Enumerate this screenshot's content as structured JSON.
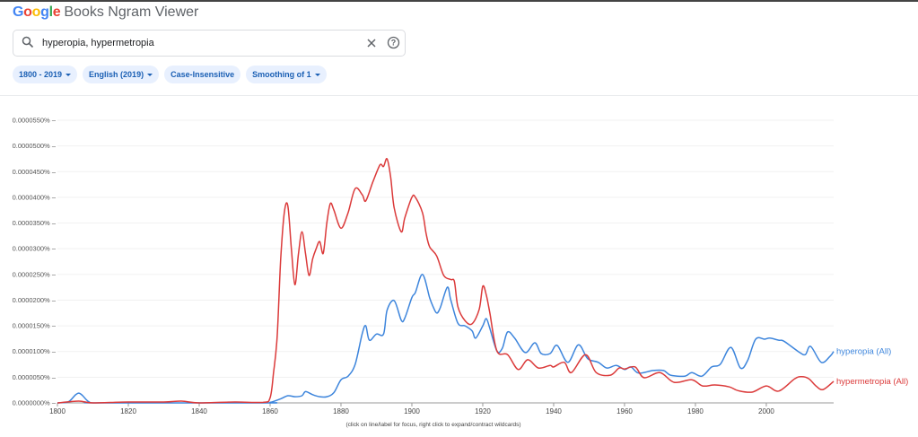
{
  "header": {
    "brand_logo": "Google",
    "title": "Books Ngram Viewer"
  },
  "search": {
    "query": "hyperopia, hypermetropia",
    "icons": [
      "search-icon",
      "clear-icon",
      "help-icon"
    ]
  },
  "filters": [
    {
      "label": "1800 - 2019",
      "dropdown": true
    },
    {
      "label": "English (2019)",
      "dropdown": true
    },
    {
      "label": "Case-Insensitive",
      "dropdown": false
    },
    {
      "label": "Smoothing of 1",
      "dropdown": true
    }
  ],
  "footnote": "(click on line/label for focus, right click to expand/contract wildcards)",
  "chart_data": {
    "type": "line",
    "title": "",
    "xlabel": "",
    "ylabel": "",
    "xlim": [
      1800,
      2019
    ],
    "ylim": [
      0,
      5.5e-05
    ],
    "x_ticks": [
      1800,
      1820,
      1840,
      1860,
      1880,
      1900,
      1920,
      1940,
      1960,
      1980,
      2000
    ],
    "x_tick_labels": [
      "1800",
      "1820",
      "1840",
      "1860",
      "1880",
      "1900",
      "1920",
      "1940",
      "1960",
      "1980",
      "2000"
    ],
    "y_ticks": [
      0,
      5e-06,
      1e-05,
      1.5e-05,
      2e-05,
      2.5e-05,
      3e-05,
      3.5e-05,
      4e-05,
      4.5e-05,
      5e-05,
      5.5e-05
    ],
    "y_tick_labels": [
      "0.0000000%",
      "0.0000050%",
      "0.0000100%",
      "0.0000150%",
      "0.0000200%",
      "0.0000250%",
      "0.0000300%",
      "0.0000350%",
      "0.0000400%",
      "0.0000450%",
      "0.0000500%",
      "0.0000550%"
    ],
    "grid": true,
    "legend": "right-end labels",
    "series": [
      {
        "name": "hyperopia (All)",
        "color": "#3d85dc",
        "points": [
          [
            1800,
            0
          ],
          [
            1803,
            1.7e-07
          ],
          [
            1805,
            1.5e-06
          ],
          [
            1806,
            1.9e-06
          ],
          [
            1807,
            1.5e-06
          ],
          [
            1809,
            1.7e-07
          ],
          [
            1812,
            0
          ],
          [
            1858,
            0
          ],
          [
            1860,
            1e-07
          ],
          [
            1863,
            8e-07
          ],
          [
            1865,
            1.4e-06
          ],
          [
            1867,
            1.2e-06
          ],
          [
            1869,
            1.4e-06
          ],
          [
            1870,
            2.2e-06
          ],
          [
            1872,
            1.6e-06
          ],
          [
            1874,
            1.2e-06
          ],
          [
            1876,
            1.2e-06
          ],
          [
            1878,
            2e-06
          ],
          [
            1880,
            4.5e-06
          ],
          [
            1882,
            5.2e-06
          ],
          [
            1884,
            7.5e-06
          ],
          [
            1886,
            1.35e-05
          ],
          [
            1887,
            1.5e-05
          ],
          [
            1888,
            1.22e-05
          ],
          [
            1890,
            1.34e-05
          ],
          [
            1892,
            1.34e-05
          ],
          [
            1893,
            1.8e-05
          ],
          [
            1895,
            1.99e-05
          ],
          [
            1897,
            1.61e-05
          ],
          [
            1898,
            1.65e-05
          ],
          [
            1900,
            2.05e-05
          ],
          [
            1901,
            2.15e-05
          ],
          [
            1903,
            2.5e-05
          ],
          [
            1905,
            2.05e-05
          ],
          [
            1906,
            1.87e-05
          ],
          [
            1907,
            1.75e-05
          ],
          [
            1908,
            1.85e-05
          ],
          [
            1910,
            2.25e-05
          ],
          [
            1911,
            2e-05
          ],
          [
            1913,
            1.55e-05
          ],
          [
            1915,
            1.5e-05
          ],
          [
            1917,
            1.4e-05
          ],
          [
            1918,
            1.26e-05
          ],
          [
            1920,
            1.5e-05
          ],
          [
            1921,
            1.64e-05
          ],
          [
            1922,
            1.45e-05
          ],
          [
            1924,
            1.01e-05
          ],
          [
            1925.5,
            1.06e-05
          ],
          [
            1927,
            1.38e-05
          ],
          [
            1929,
            1.26e-05
          ],
          [
            1932,
            9.8e-06
          ],
          [
            1934.7,
            1.17e-05
          ],
          [
            1936.5,
            9.6e-06
          ],
          [
            1939,
            9.6e-06
          ],
          [
            1941,
            1.12e-05
          ],
          [
            1944,
            7.9e-06
          ],
          [
            1947,
            1.13e-05
          ],
          [
            1949.6,
            8.6e-06
          ],
          [
            1952.6,
            7.9e-06
          ],
          [
            1955,
            6.8e-06
          ],
          [
            1957.7,
            7.3e-06
          ],
          [
            1960,
            6.5e-06
          ],
          [
            1961.8,
            7e-06
          ],
          [
            1964,
            5.8e-06
          ],
          [
            1968,
            6.3e-06
          ],
          [
            1971,
            6.3e-06
          ],
          [
            1973,
            5.4e-06
          ],
          [
            1977,
            5.2e-06
          ],
          [
            1979,
            5.9e-06
          ],
          [
            1981.8,
            5.2e-06
          ],
          [
            1984.6,
            7e-06
          ],
          [
            1987,
            7.5e-06
          ],
          [
            1990,
            1.08e-05
          ],
          [
            1992.7,
            6.8e-06
          ],
          [
            1994.7,
            8.2e-06
          ],
          [
            1997,
            1.24e-05
          ],
          [
            1999.5,
            1.24e-05
          ],
          [
            2001,
            1.26e-05
          ],
          [
            2003.5,
            1.22e-05
          ],
          [
            2005,
            1.2e-05
          ],
          [
            2009,
            1e-05
          ],
          [
            2011,
            9.4e-06
          ],
          [
            2012.5,
            1.1e-05
          ],
          [
            2015.5,
            7.9e-06
          ],
          [
            2018,
            9.1e-06
          ],
          [
            2019,
            1e-05
          ]
        ]
      },
      {
        "name": "hypermetropia (All)",
        "color": "#db3a3a",
        "points": [
          [
            1800,
            0
          ],
          [
            1806,
            3.5e-07
          ],
          [
            1810,
            0
          ],
          [
            1820,
            1.7e-07
          ],
          [
            1830,
            1.7e-07
          ],
          [
            1835,
            3.5e-07
          ],
          [
            1840,
            0
          ],
          [
            1850,
            1.7e-07
          ],
          [
            1858,
            1e-07
          ],
          [
            1860,
            1e-06
          ],
          [
            1861,
            6e-06
          ],
          [
            1862,
            1.3e-05
          ],
          [
            1863,
            2.8e-05
          ],
          [
            1864,
            3.7e-05
          ],
          [
            1865,
            3.84e-05
          ],
          [
            1866,
            3e-05
          ],
          [
            1867,
            2.3e-05
          ],
          [
            1868,
            2.9e-05
          ],
          [
            1869,
            3.33e-05
          ],
          [
            1870,
            2.9e-05
          ],
          [
            1871,
            2.48e-05
          ],
          [
            1872,
            2.8e-05
          ],
          [
            1873,
            3e-05
          ],
          [
            1874,
            3.14e-05
          ],
          [
            1875,
            2.91e-05
          ],
          [
            1876,
            3.5e-05
          ],
          [
            1877,
            3.88e-05
          ],
          [
            1878,
            3.75e-05
          ],
          [
            1880,
            3.4e-05
          ],
          [
            1882,
            3.7e-05
          ],
          [
            1884,
            4.17e-05
          ],
          [
            1886,
            4.05e-05
          ],
          [
            1887,
            3.93e-05
          ],
          [
            1889,
            4.3e-05
          ],
          [
            1891,
            4.63e-05
          ],
          [
            1892,
            4.6e-05
          ],
          [
            1893,
            4.75e-05
          ],
          [
            1894,
            4.4e-05
          ],
          [
            1895,
            3.8e-05
          ],
          [
            1897,
            3.33e-05
          ],
          [
            1898,
            3.6e-05
          ],
          [
            1900,
            4e-05
          ],
          [
            1901,
            4e-05
          ],
          [
            1903,
            3.7e-05
          ],
          [
            1904,
            3.3e-05
          ],
          [
            1905,
            3.04e-05
          ],
          [
            1907,
            2.86e-05
          ],
          [
            1909,
            2.48e-05
          ],
          [
            1911,
            2.4e-05
          ],
          [
            1912,
            2.36e-05
          ],
          [
            1913,
            1.87e-05
          ],
          [
            1915,
            1.6e-05
          ],
          [
            1917,
            1.54e-05
          ],
          [
            1919,
            1.82e-05
          ],
          [
            1920,
            2.27e-05
          ],
          [
            1921,
            2.1e-05
          ],
          [
            1922,
            1.75e-05
          ],
          [
            1924,
            1.01e-05
          ],
          [
            1927,
            9.4e-06
          ],
          [
            1930,
            6.5e-06
          ],
          [
            1932.7,
            8.4e-06
          ],
          [
            1935.7,
            6.8e-06
          ],
          [
            1939,
            7.3e-06
          ],
          [
            1940,
            7e-06
          ],
          [
            1943,
            7.9e-06
          ],
          [
            1945,
            5.9e-06
          ],
          [
            1949,
            9.4e-06
          ],
          [
            1952,
            5.9e-06
          ],
          [
            1956,
            5.4e-06
          ],
          [
            1958.5,
            6.8e-06
          ],
          [
            1960,
            6.6e-06
          ],
          [
            1963,
            7e-06
          ],
          [
            1965.5,
            4.9e-06
          ],
          [
            1970,
            5.9e-06
          ],
          [
            1974,
            4e-06
          ],
          [
            1979,
            4.5e-06
          ],
          [
            1982,
            3.3e-06
          ],
          [
            1985.5,
            3.5e-06
          ],
          [
            1989.6,
            3.1e-06
          ],
          [
            1992,
            2.4e-06
          ],
          [
            1996,
            2.1e-06
          ],
          [
            2000,
            3.3e-06
          ],
          [
            2003.5,
            2.3e-06
          ],
          [
            2008,
            4.7e-06
          ],
          [
            2010,
            5.1e-06
          ],
          [
            2012,
            4.7e-06
          ],
          [
            2014,
            3.3e-06
          ],
          [
            2016,
            2.6e-06
          ],
          [
            2019,
            4.2e-06
          ]
        ]
      }
    ]
  }
}
